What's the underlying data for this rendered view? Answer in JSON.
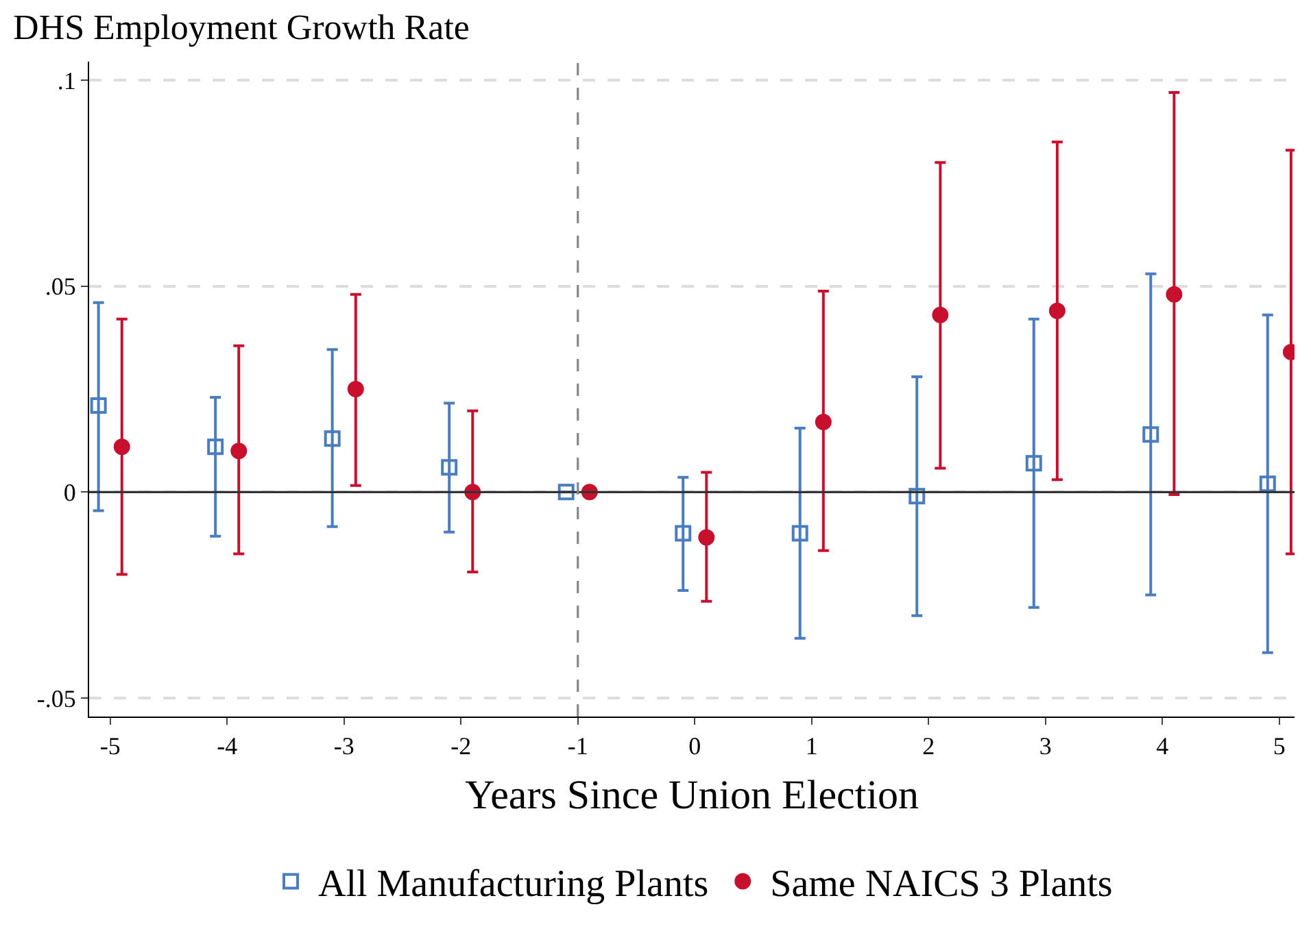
{
  "chart_data": {
    "type": "scatter",
    "title": "DHS Employment Growth Rate",
    "xlabel": "Years Since Union Election",
    "xlim": [
      -5.18,
      5.13
    ],
    "xticks": [
      -5,
      -4,
      -3,
      -2,
      -1,
      0,
      1,
      2,
      3,
      4,
      5
    ],
    "ylim": [
      -0.0545,
      0.1045
    ],
    "yticks": [
      {
        "value": -0.05,
        "label": "-.05"
      },
      {
        "value": 0,
        "label": "0"
      },
      {
        "value": 0.05,
        "label": ".05"
      },
      {
        "value": 0.1,
        "label": ".1"
      }
    ],
    "grid": "y",
    "legend": "bottom",
    "ref_lines": [
      {
        "axis": "y",
        "value": 0,
        "color": "#333333",
        "line_style": "solid"
      },
      {
        "axis": "x",
        "value": -1,
        "color": "#888888",
        "line_style": "dashed"
      }
    ],
    "series": [
      {
        "name": "All Manufacturing Plants",
        "color": "#4a7dbf",
        "marker": "square",
        "x": [
          -5.1,
          -4.1,
          -3.1,
          -2.1,
          -1.1,
          -0.1,
          0.9,
          1.9,
          2.9,
          3.9,
          4.9
        ],
        "values": [
          0.021,
          0.011,
          0.013,
          0.006,
          0,
          -0.01,
          -0.01,
          -0.001,
          0.007,
          0.014,
          0.002
        ],
        "errors": [
          [
            -0.0045,
            0.046
          ],
          [
            -0.0107,
            0.023
          ],
          [
            -0.0084,
            0.0346
          ],
          [
            -0.0097,
            0.0216
          ],
          null,
          [
            -0.0239,
            0.0036
          ],
          [
            -0.0355,
            0.0155
          ],
          [
            -0.03,
            0.028
          ],
          [
            -0.028,
            0.042
          ],
          [
            -0.025,
            0.053
          ],
          [
            -0.039,
            0.043
          ]
        ]
      },
      {
        "name": "Same NAICS 3 Plants",
        "color": "#c8102e",
        "marker": "circle",
        "x": [
          -4.9,
          -3.9,
          -2.9,
          -1.9,
          -0.9,
          0.1,
          1.1,
          2.1,
          3.1,
          4.1,
          5.1
        ],
        "values": [
          0.011,
          0.01,
          0.025,
          0,
          0,
          -0.011,
          0.017,
          0.043,
          0.044,
          0.048,
          0.034
        ],
        "errors": [
          [
            -0.02,
            0.042
          ],
          [
            -0.015,
            0.0355
          ],
          [
            0.0016,
            0.048
          ],
          [
            -0.0194,
            0.0197
          ],
          null,
          [
            -0.0265,
            0.0048
          ],
          [
            -0.0142,
            0.0488
          ],
          [
            0.0058,
            0.08
          ],
          [
            0.003,
            0.085
          ],
          [
            -0.0006,
            0.097
          ],
          [
            -0.015,
            0.083
          ]
        ]
      }
    ]
  }
}
